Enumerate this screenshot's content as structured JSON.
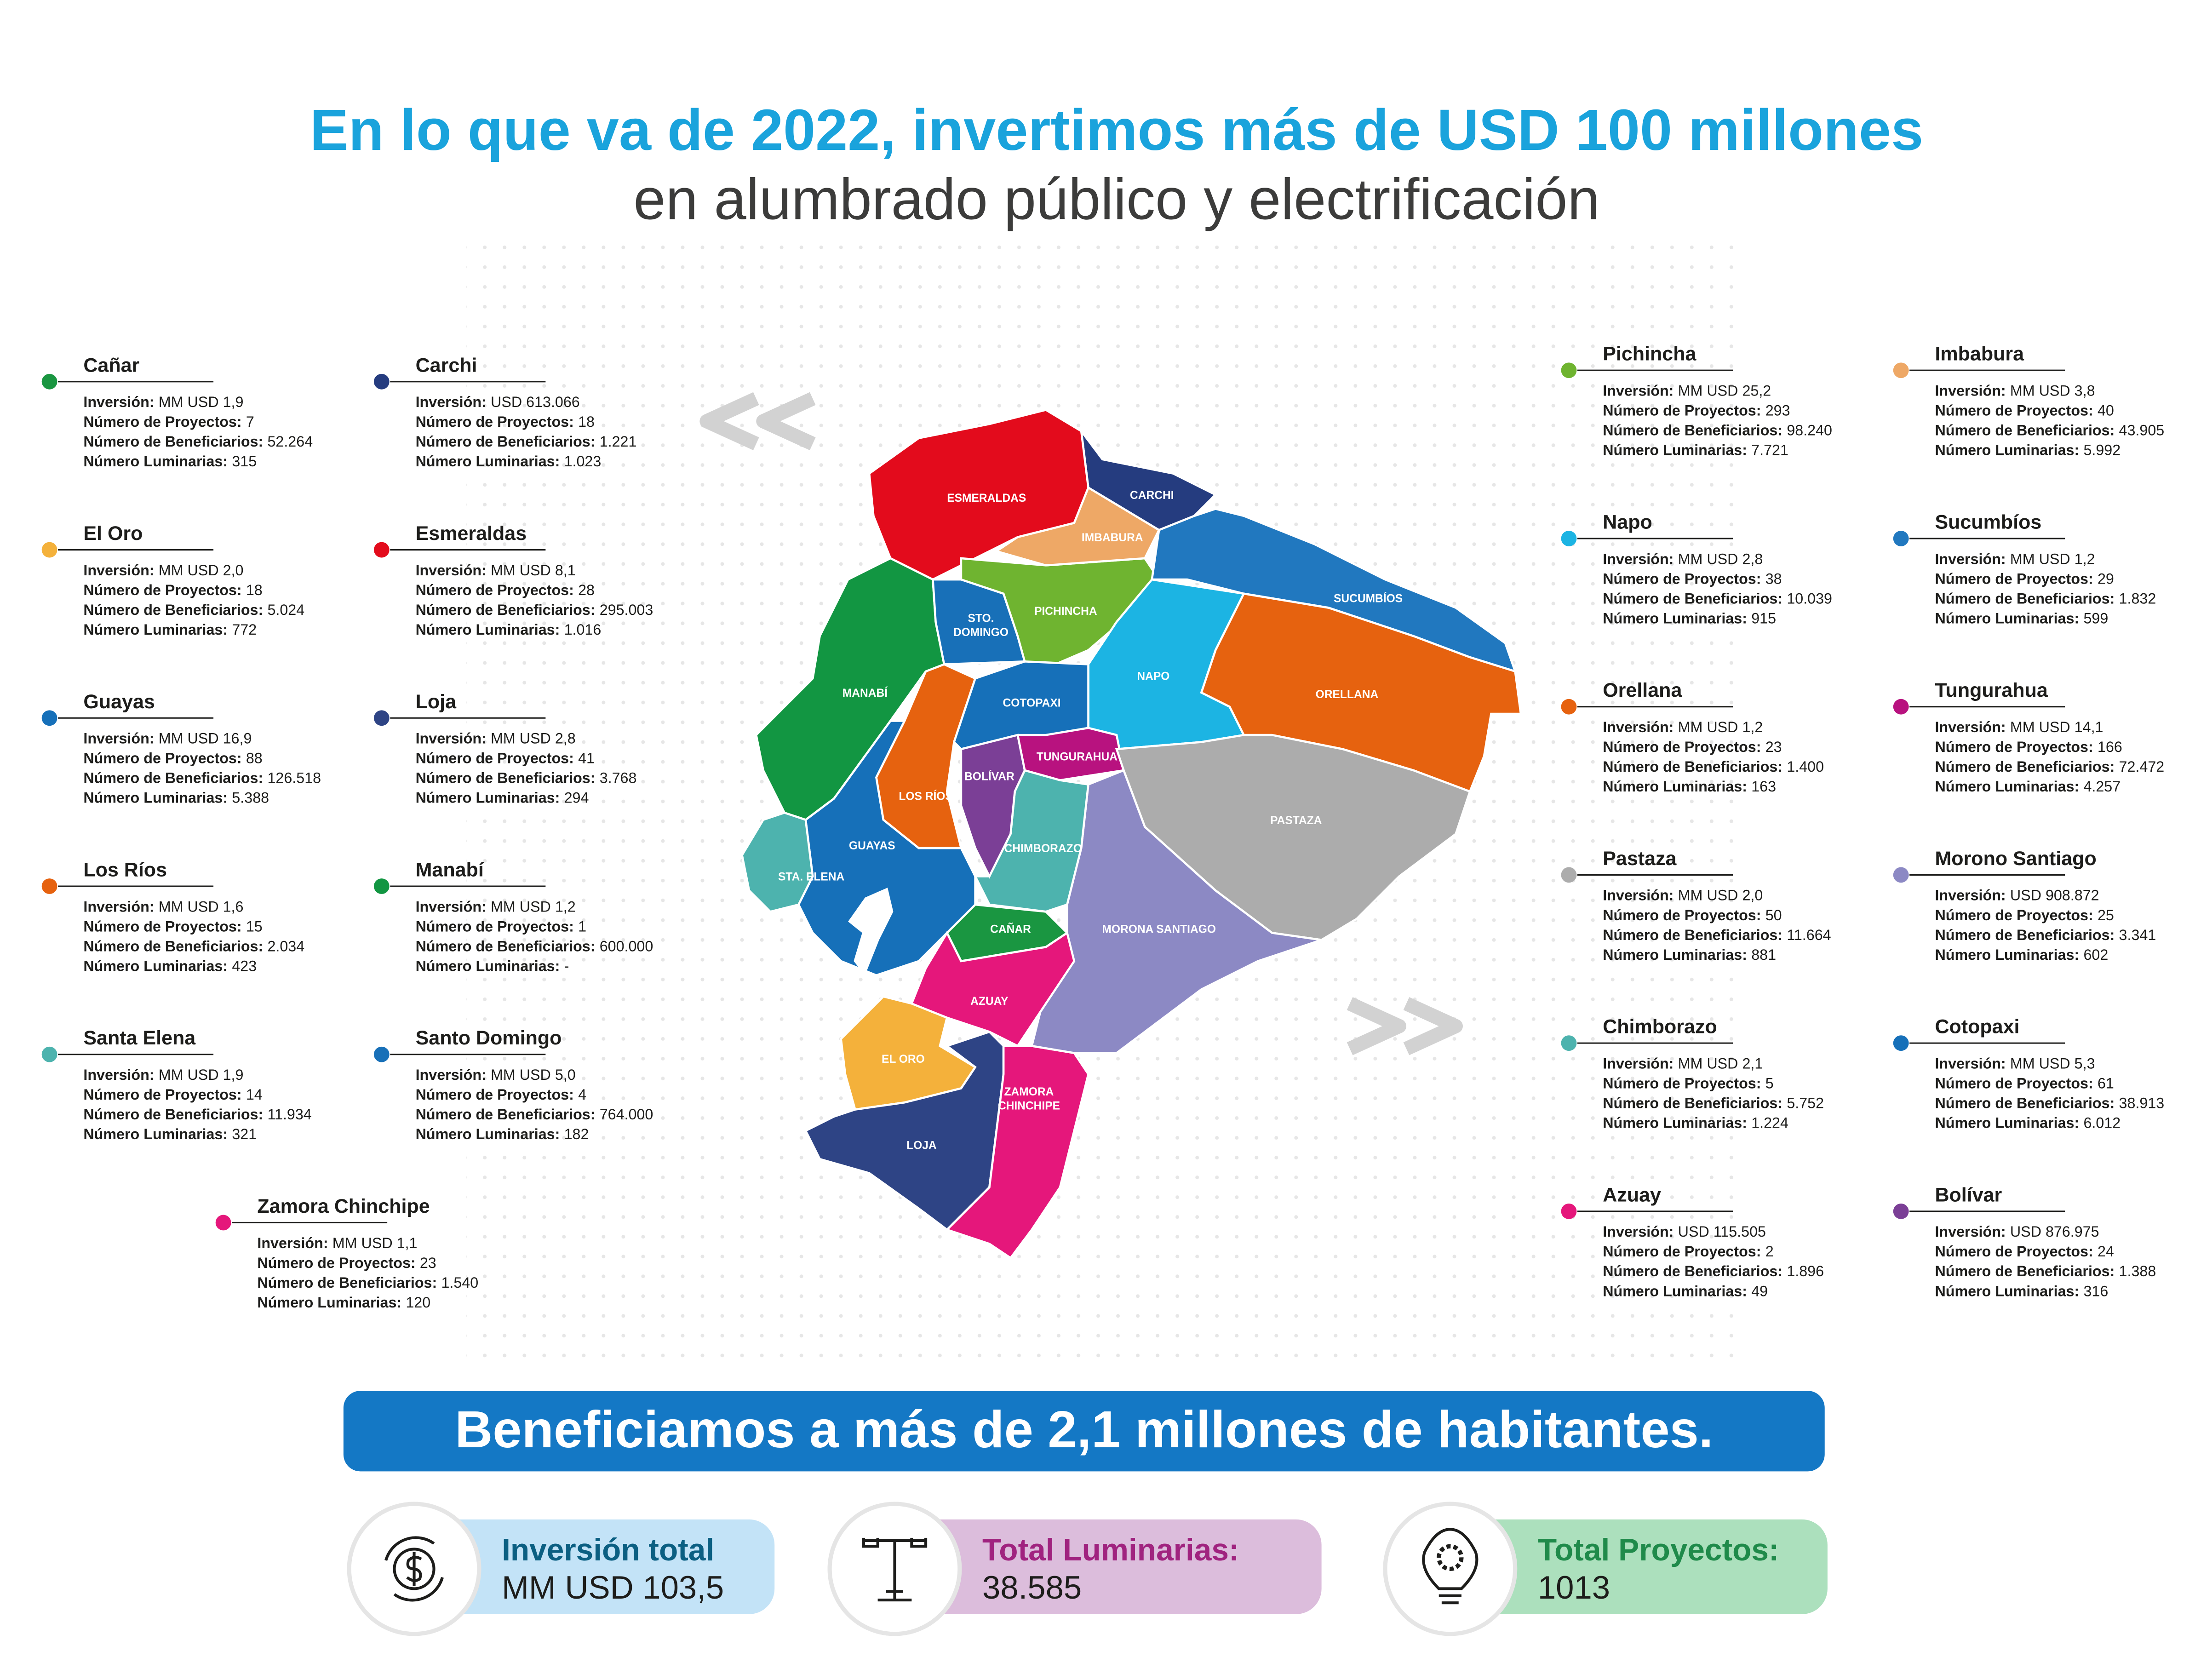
{
  "header": {
    "title": "En lo que va de 2022, invertimos más de USD 100 millones",
    "subtitle": "en alumbrado público y electrificación"
  },
  "field_labels": [
    "Inversión:",
    "Número de Proyectos:",
    "Número de Beneficiarios:",
    "Número Luminarias:"
  ],
  "provinces": [
    {
      "name": "Cañar",
      "color": "#1a9641",
      "values": [
        "MM USD 1,9",
        "7",
        "52.264",
        "315"
      ]
    },
    {
      "name": "Carchi",
      "color": "#253c7f",
      "values": [
        "USD 613.066",
        "18",
        "1.221",
        "1.023"
      ]
    },
    {
      "name": "El Oro",
      "color": "#f4b13b",
      "values": [
        "MM USD 2,0",
        "18",
        "5.024",
        "772"
      ]
    },
    {
      "name": "Esmeraldas",
      "color": "#e30b1c",
      "values": [
        "MM USD 8,1",
        "28",
        "295.003",
        "1.016"
      ]
    },
    {
      "name": "Guayas",
      "color": "#1670b9",
      "values": [
        "MM USD 16,9",
        "88",
        "126.518",
        "5.388"
      ]
    },
    {
      "name": "Loja",
      "color": "#2e4485",
      "values": [
        "MM USD 2,8",
        "41",
        "3.768",
        "294"
      ]
    },
    {
      "name": "Los Ríos",
      "color": "#e6620f",
      "values": [
        "MM USD 1,6",
        "15",
        "2.034",
        "423"
      ]
    },
    {
      "name": "Manabí",
      "color": "#129642",
      "values": [
        "MM USD 1,2",
        "1",
        "600.000",
        "-"
      ]
    },
    {
      "name": "Santa Elena",
      "color": "#4db3ae",
      "values": [
        "MM USD 1,9",
        "14",
        "11.934",
        "321"
      ]
    },
    {
      "name": "Santo Domingo",
      "color": "#1870b8",
      "values": [
        "MM USD 5,0",
        "4",
        "764.000",
        "182"
      ]
    },
    {
      "name": "Zamora Chinchipe",
      "color": "#e5177b",
      "values": [
        "MM USD 1,1",
        "23",
        "1.540",
        "120"
      ]
    },
    {
      "name": "Pichincha",
      "color": "#6fb430",
      "values": [
        "MM USD 25,2",
        "293",
        "98.240",
        "7.721"
      ]
    },
    {
      "name": "Imbabura",
      "color": "#eea866",
      "values": [
        "MM USD 3,8",
        "40",
        "43.905",
        "5.992"
      ]
    },
    {
      "name": "Napo",
      "color": "#1cb4e3",
      "values": [
        "MM USD 2,8",
        "38",
        "10.039",
        "915"
      ]
    },
    {
      "name": "Sucumbíos",
      "color": "#2178bf",
      "values": [
        "MM USD 1,2",
        "29",
        "1.832",
        "599"
      ]
    },
    {
      "name": "Orellana",
      "color": "#e6620f",
      "values": [
        "MM USD 1,2",
        "23",
        "1.400",
        "163"
      ]
    },
    {
      "name": "Tungurahua",
      "color": "#b8127f",
      "values": [
        "MM USD  14,1",
        "166",
        "72.472",
        "4.257"
      ]
    },
    {
      "name": "Pastaza",
      "color": "#acacac",
      "values": [
        "MM USD 2,0",
        "50",
        "11.664",
        "881"
      ]
    },
    {
      "name": "Morono Santiago",
      "color": "#8c89c4",
      "values": [
        "USD 908.872",
        "25",
        "3.341",
        "602"
      ]
    },
    {
      "name": "Chimborazo",
      "color": "#4db3ae",
      "values": [
        "MM USD 2,1",
        "5",
        "5.752",
        "1.224"
      ]
    },
    {
      "name": "Cotopaxi",
      "color": "#1670b9",
      "values": [
        "MM USD 5,3",
        "61",
        "38.913",
        "6.012"
      ]
    },
    {
      "name": "Azuay",
      "color": "#e5177b",
      "values": [
        "USD 115.505",
        "2",
        "1.896",
        "49"
      ]
    },
    {
      "name": "Bolívar",
      "color": "#7b3f96",
      "values": [
        "USD 876.975",
        "24",
        "1.388",
        "316"
      ]
    }
  ],
  "map_labels": [
    [
      "ESMERALDAS"
    ],
    [
      "CARCHI"
    ],
    [
      "IMBABURA"
    ],
    [
      "PICHINCHA"
    ],
    [
      "STO.",
      "DOMINGO"
    ],
    [
      "SUCUMBÍOS"
    ],
    [
      "MANABÍ"
    ],
    [
      "NAPO"
    ],
    [
      "COTOPAXI"
    ],
    [
      "ORELLANA"
    ],
    [
      "TUNGURAHUA"
    ],
    [
      "BOLÍVAR"
    ],
    [
      "LOS RÍOS"
    ],
    [
      "PASTAZA"
    ],
    [
      "GUAYAS"
    ],
    [
      "STA. ELENA"
    ],
    [
      "CHIMBORAZO"
    ],
    [
      "CAÑAR"
    ],
    [
      "MORONA SANTIAGO"
    ],
    [
      "AZUAY"
    ],
    [
      "EL ORO"
    ],
    [
      "ZAMORA",
      "CHINCHIPE"
    ],
    [
      "LOJA"
    ]
  ],
  "banner": "Beneficiamos a más de 2,1 millones de habitantes.",
  "totals": [
    {
      "label": "Inversión total",
      "value": "MM USD 103,5"
    },
    {
      "label": "Total Luminarias:",
      "value": "38.585"
    },
    {
      "label": "Total Proyectos:",
      "value": "1013"
    }
  ]
}
